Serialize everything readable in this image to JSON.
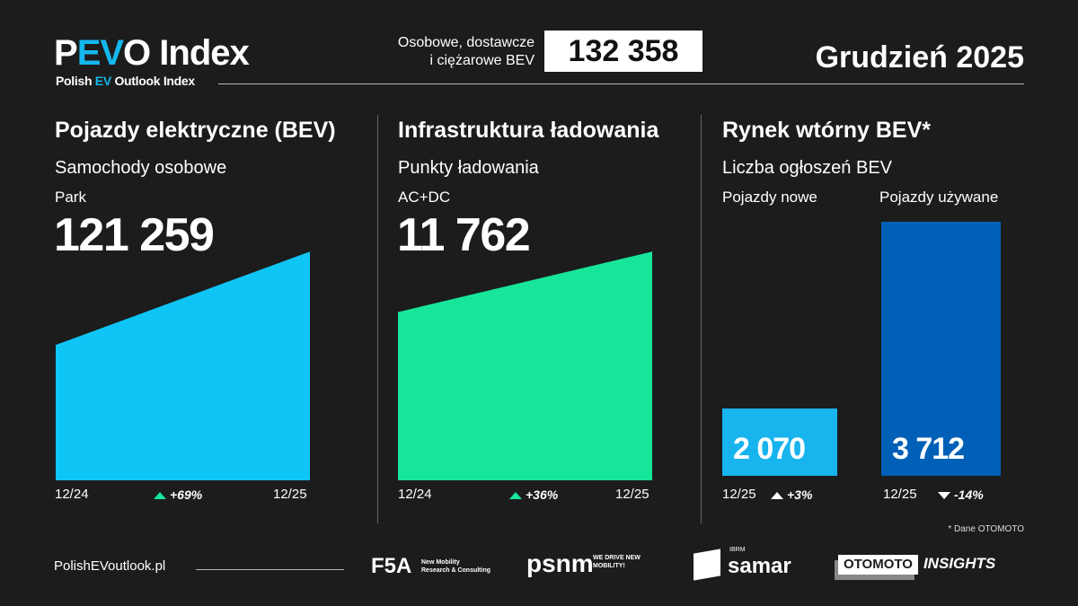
{
  "header": {
    "logo_prefix": "P",
    "logo_ev": "EV",
    "logo_suffix": "O Index",
    "sub_prefix": "Polish ",
    "sub_ev": "EV",
    "sub_suffix": " Outlook Index",
    "total_label_1": "Osobowe, dostawcze",
    "total_label_2": "i ciężarowe BEV",
    "total_value": "132 358",
    "date": "Grudzień 2025"
  },
  "panels": [
    {
      "title": "Pojazdy elektryczne (BEV)",
      "subtitle": "Samochody osobowe",
      "metric": "Park",
      "value": "121 259",
      "x_start": "12/24",
      "x_end": "12/25",
      "change": "+69%",
      "color": "#0fc5f5"
    },
    {
      "title": "Infrastruktura ładowania",
      "subtitle": "Punkty ładowania",
      "metric": "AC+DC",
      "value": "11 762",
      "x_start": "12/24",
      "x_end": "12/25",
      "change": "+36%",
      "color": "#17e69a"
    },
    {
      "title": "Rynek wtórny BEV*",
      "subtitle": "Liczba ogłoszeń BEV",
      "bars": [
        {
          "label": "Pojazdy nowe",
          "value": "2 070",
          "x": "12/25",
          "change": "+3%",
          "direction": "up",
          "color": "#17b4ee"
        },
        {
          "label": "Pojazdy używane",
          "value": "3 712",
          "x": "12/25",
          "change": "-14%",
          "direction": "down",
          "color": "#0060b8"
        }
      ],
      "footnote": "* Dane OTOMOTO"
    }
  ],
  "chart_data": [
    {
      "type": "area",
      "x": [
        "12/24",
        "12/25"
      ],
      "values": [
        71751,
        121259
      ],
      "title": "Pojazdy elektryczne (BEV)"
    },
    {
      "type": "area",
      "x": [
        "12/24",
        "12/25"
      ],
      "values": [
        8649,
        11762
      ],
      "title": "Infrastruktura ładowania"
    },
    {
      "type": "bar",
      "categories": [
        "Pojazdy nowe",
        "Pojazdy używane"
      ],
      "values": [
        2070,
        3712
      ],
      "title": "Rynek wtórny BEV*"
    }
  ],
  "footer": {
    "url": "PolishEVoutlook.pl",
    "partners": [
      "F5A",
      "New Mobility",
      "Research & Consulting",
      "psnm",
      "WE DRIVE NEW MOBILITY!",
      "IBRM",
      "samar",
      "OTOMOTO",
      "INSIGHTS"
    ]
  },
  "colors": {
    "background": "#1c1c1c",
    "up": "#17e69a",
    "text": "#ffffff"
  }
}
